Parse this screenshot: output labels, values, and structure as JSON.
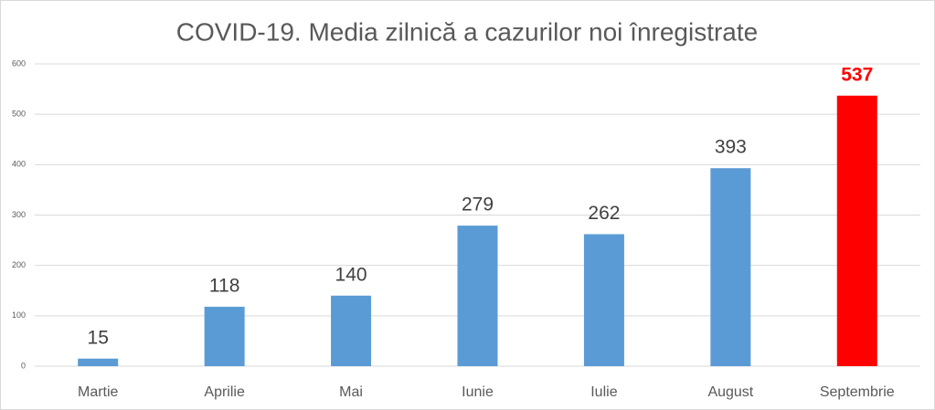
{
  "chart_data": {
    "type": "bar",
    "title": "COVID-19. Media zilnică a cazurilor noi înregistrate",
    "categories": [
      "Martie",
      "Aprilie",
      "Mai",
      "Iunie",
      "Iulie",
      "August",
      "Septembrie"
    ],
    "values": [
      15,
      118,
      140,
      279,
      262,
      393,
      537
    ],
    "colors": [
      "#5b9bd5",
      "#5b9bd5",
      "#5b9bd5",
      "#5b9bd5",
      "#5b9bd5",
      "#5b9bd5",
      "#ff0000"
    ],
    "value_label_colors": [
      "#404040",
      "#404040",
      "#404040",
      "#404040",
      "#404040",
      "#404040",
      "#ff0000"
    ],
    "ylim": [
      0,
      600
    ],
    "yticks": [
      0,
      100,
      200,
      300,
      400,
      500,
      600
    ],
    "grid": true
  }
}
